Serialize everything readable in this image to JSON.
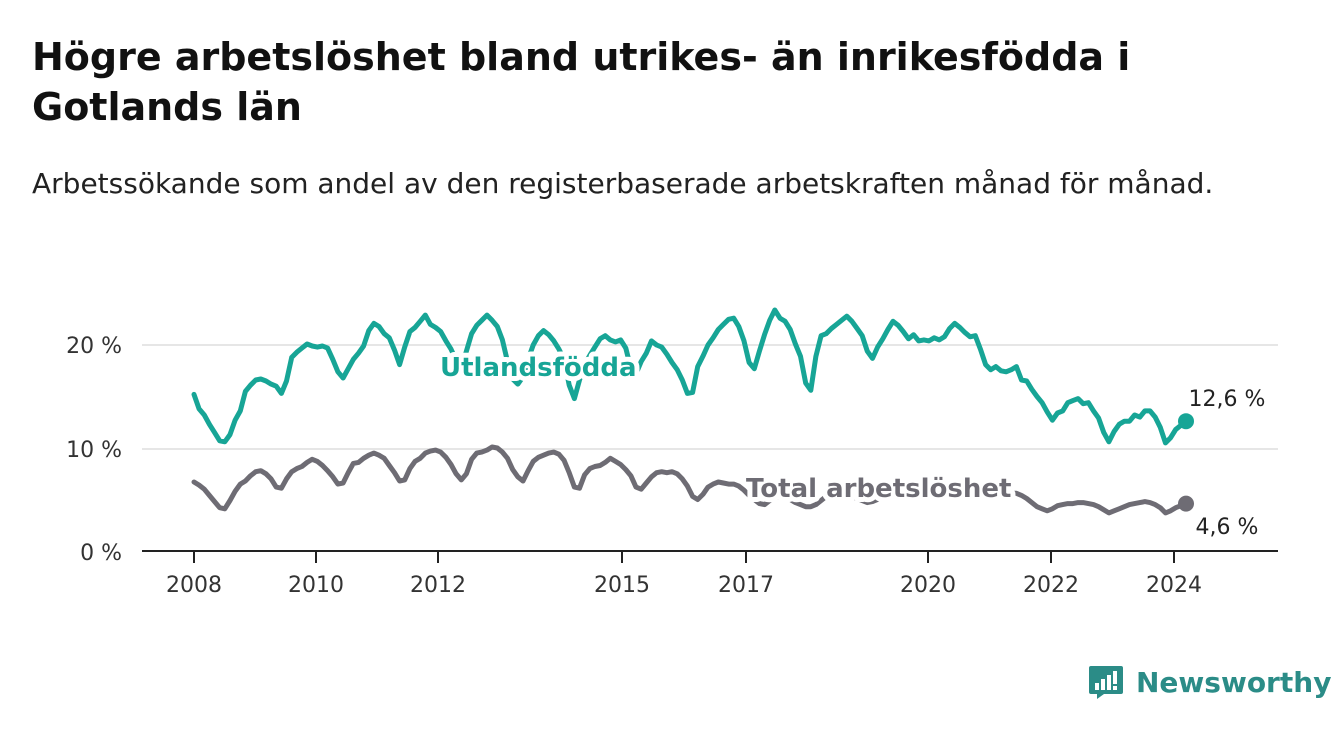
{
  "colors": {
    "utlandsfodda": "#17a596",
    "total": "#6e6c74",
    "grid": "#dddddd",
    "axis": "#222222",
    "brand": "#2b8c87"
  },
  "brand": {
    "name": "Newsworthy",
    "icon": "bar-chart-speech-icon"
  },
  "chart_data": {
    "type": "line",
    "title": "Högre arbetslöshet bland utrikes- än inrikesfödda i Gotlands län",
    "subtitle": "Arbetssökande som andel av den registerbaserade arbetskraften månad för månad.",
    "x_axis": {
      "ticks": [
        "2008",
        "2010",
        "2012",
        "2015",
        "2017",
        "2020",
        "2022",
        "2024"
      ]
    },
    "y_axis": {
      "range": [
        0,
        20
      ],
      "ticks": [
        "0 %",
        "10 %",
        "20 %"
      ],
      "unit": "%"
    },
    "grid": true,
    "series": [
      {
        "name": "Utlandsfödda",
        "end_label": "12,6 %",
        "values": [
          15.2,
          13.8,
          13.2,
          12.3,
          11.5,
          10.7,
          10.6,
          11.3,
          12.7,
          13.6,
          15.5,
          16.1,
          16.6,
          16.7,
          16.5,
          16.2,
          16.0,
          15.3,
          16.5,
          18.8,
          19.3,
          19.7,
          20.1,
          19.9,
          19.8,
          19.9,
          19.7,
          18.6,
          17.4,
          16.8,
          17.7,
          18.6,
          19.2,
          19.9,
          21.4,
          22.1,
          21.8,
          21.1,
          20.7,
          19.5,
          18.1,
          19.8,
          21.3,
          21.7,
          22.3,
          22.9,
          22.0,
          21.7,
          21.3,
          20.4,
          19.6,
          18.5,
          17.7,
          19.4,
          21.1,
          21.9,
          22.4,
          22.9,
          22.4,
          21.8,
          20.5,
          18.4,
          16.7,
          16.2,
          16.9,
          18.6,
          20.0,
          20.9,
          21.4,
          21.0,
          20.4,
          19.6,
          18.6,
          16.1,
          14.8,
          16.6,
          18.1,
          19.0,
          19.8,
          20.6,
          20.9,
          20.5,
          20.3,
          20.5,
          19.7,
          17.7,
          17.2,
          18.4,
          19.2,
          20.4,
          20.0,
          19.8,
          19.1,
          18.3,
          17.6,
          16.6,
          15.3,
          15.4,
          17.9,
          18.9,
          20.0,
          20.7,
          21.5,
          22.0,
          22.5,
          22.6,
          21.8,
          20.4,
          18.3,
          17.7,
          19.4,
          21.0,
          22.4,
          23.4,
          22.6,
          22.3,
          21.5,
          20.1,
          18.9,
          16.3,
          15.6,
          18.9,
          20.9,
          21.1,
          21.6,
          22.0,
          22.4,
          22.8,
          22.3,
          21.6,
          20.9,
          19.4,
          18.7,
          19.8,
          20.6,
          21.5,
          22.3,
          21.9,
          21.3,
          20.6,
          21.0,
          20.4,
          20.5,
          20.4,
          20.7,
          20.5,
          20.8,
          21.6,
          22.1,
          21.7,
          21.2,
          20.8,
          20.9,
          19.6,
          18.1,
          17.6,
          17.9,
          17.5,
          17.4,
          17.6,
          17.9,
          16.6,
          16.5,
          15.7,
          15.0,
          14.4,
          13.5,
          12.7,
          13.4,
          13.6,
          14.4,
          14.6,
          14.8,
          14.3,
          14.4,
          13.6,
          12.9,
          11.5,
          10.6,
          11.6,
          12.3,
          12.6,
          12.6,
          13.2,
          13.0,
          13.6,
          13.6,
          13.0,
          12.0,
          10.5,
          11.0,
          11.8,
          12.2,
          12.6
        ]
      },
      {
        "name": "Total arbetslöshet",
        "end_label": "4,6 %",
        "values": [
          6.7,
          6.4,
          6.0,
          5.4,
          4.8,
          4.2,
          4.1,
          4.9,
          5.8,
          6.5,
          6.8,
          7.3,
          7.7,
          7.8,
          7.5,
          7.0,
          6.2,
          6.1,
          7.0,
          7.7,
          8.0,
          8.2,
          8.6,
          8.9,
          8.7,
          8.3,
          7.8,
          7.2,
          6.5,
          6.6,
          7.6,
          8.5,
          8.6,
          9.0,
          9.3,
          9.5,
          9.3,
          9.0,
          8.3,
          7.6,
          6.8,
          6.9,
          8.0,
          8.7,
          9.0,
          9.5,
          9.7,
          9.8,
          9.6,
          9.1,
          8.4,
          7.5,
          6.9,
          7.5,
          8.9,
          9.5,
          9.6,
          9.8,
          10.1,
          10.0,
          9.6,
          9.0,
          7.9,
          7.2,
          6.8,
          7.8,
          8.7,
          9.1,
          9.3,
          9.5,
          9.6,
          9.4,
          8.8,
          7.6,
          6.2,
          6.1,
          7.4,
          8.0,
          8.2,
          8.3,
          8.6,
          9.0,
          8.7,
          8.4,
          7.9,
          7.3,
          6.2,
          6.0,
          6.6,
          7.2,
          7.6,
          7.7,
          7.6,
          7.7,
          7.5,
          7.0,
          6.3,
          5.3,
          5.0,
          5.5,
          6.2,
          6.5,
          6.7,
          6.6,
          6.5,
          6.5,
          6.3,
          5.9,
          5.4,
          5.0,
          4.6,
          4.5,
          4.9,
          5.2,
          5.3,
          5.1,
          5.0,
          4.7,
          4.5,
          4.3,
          4.3,
          4.5,
          4.9,
          5.3,
          5.4,
          5.5,
          5.4,
          5.4,
          5.3,
          5.1,
          4.9,
          4.7,
          4.8,
          5.0,
          5.3,
          5.5,
          5.6,
          5.4,
          5.5,
          5.5,
          5.6,
          5.6,
          5.7,
          5.6,
          5.6,
          5.5,
          5.4,
          5.5,
          5.5,
          5.4,
          5.5,
          5.6,
          5.5,
          5.4,
          5.5,
          5.6,
          5.5,
          5.6,
          5.5,
          5.6,
          5.6,
          5.4,
          5.1,
          4.7,
          4.3,
          4.1,
          3.9,
          4.1,
          4.4,
          4.5,
          4.6,
          4.6,
          4.7,
          4.7,
          4.6,
          4.5,
          4.3,
          4.0,
          3.7,
          3.9,
          4.1,
          4.3,
          4.5,
          4.6,
          4.7,
          4.8,
          4.7,
          4.5,
          4.2,
          3.7,
          3.9,
          4.2,
          4.4,
          4.6
        ]
      }
    ]
  }
}
